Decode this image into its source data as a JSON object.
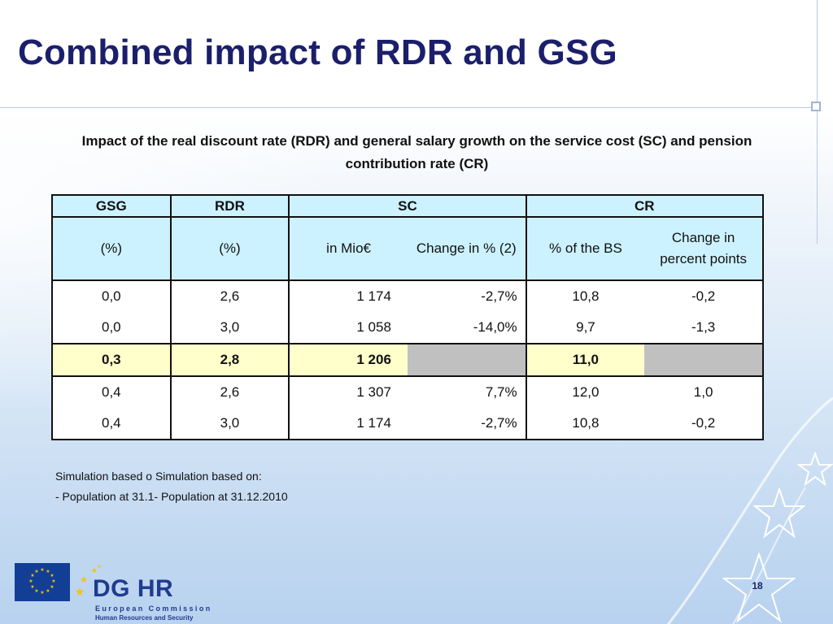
{
  "slide": {
    "title": "Combined impact of RDR and GSG",
    "subtitle": "Impact of the real discount rate (RDR) and general salary growth on the service cost (SC) and pension contribution rate (CR)"
  },
  "table": {
    "group_headers": [
      "GSG",
      "RDR",
      "SC",
      "CR"
    ],
    "sub_headers": [
      "(%)",
      "(%)",
      "in Mio€",
      "Change in % (2)",
      "% of the BS",
      "Change in percent points"
    ],
    "rows": [
      [
        "0,0",
        "2,6",
        "1 174",
        "-2,7%",
        "10,8",
        "-0,2"
      ],
      [
        "0,0",
        "3,0",
        "1 058",
        "-14,0%",
        "9,7",
        "-1,3"
      ],
      [
        "0,3",
        "2,8",
        "1 206",
        "",
        "11,0",
        ""
      ],
      [
        "0,4",
        "2,6",
        "1 307",
        "7,7%",
        "12,0",
        "1,0"
      ],
      [
        "0,4",
        "3,0",
        "1 174",
        "-2,7%",
        "10,8",
        "-0,2"
      ]
    ]
  },
  "notes": {
    "line1": "Simulation based o Simulation based on:",
    "line2": "- Population at 31.1- Population at 31.12.2010"
  },
  "footer": {
    "brand": "DG HR",
    "org_line1": "European Commission",
    "org_line2": "Human Resources and Security",
    "page_number": "18"
  },
  "colors": {
    "title": "#1b1f6b",
    "header_fill": "#ccf2ff",
    "baseline_fill": "#ffffcc",
    "blank_fill": "#c0c0c0",
    "eu_flag": "#123f95",
    "star_gold": "#f5c400"
  },
  "icons": [
    "eu-flag-icon",
    "star-icon",
    "star-outline-icon"
  ]
}
